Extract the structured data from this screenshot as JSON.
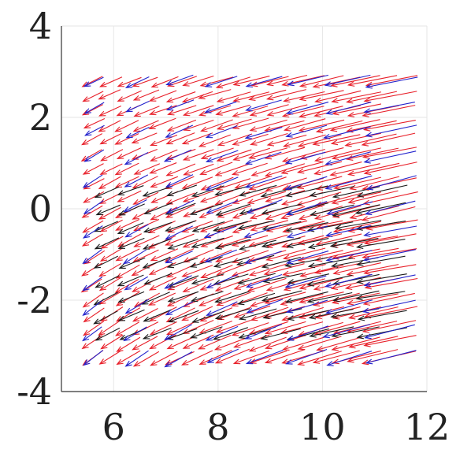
{
  "chart_data": {
    "type": "quiver",
    "title": "",
    "xlabel": "",
    "ylabel": "",
    "xlim": [
      5,
      12
    ],
    "ylim": [
      -4,
      4
    ],
    "xticks": [
      "6",
      "8",
      "10",
      "12"
    ],
    "yticks": [
      "4",
      "2",
      "0",
      "-2",
      "-4"
    ],
    "grid": true,
    "box": "left-bottom",
    "series": [
      {
        "color": "#e8202a",
        "field": {
          "x_range": [
            5.8,
            11.8
          ],
          "y_range": [
            -3.1,
            2.9
          ],
          "columns": 18,
          "rows": 20,
          "u_base": -0.38,
          "u_gain": -0.05,
          "v_base": -0.3,
          "v_gain": 0.03
        }
      },
      {
        "color": "#1a1a1a",
        "field": {
          "x_range": [
            6.1,
            11.6
          ],
          "y_range": [
            -2.6,
            0.5
          ],
          "columns": 12,
          "rows": 9,
          "u_base": -0.42,
          "u_gain": -0.04,
          "v_base": -0.26,
          "v_gain": 0.03
        }
      },
      {
        "color": "#2222cc",
        "field": {
          "x_range": [
            5.8,
            11.8
          ],
          "y_range": [
            -3.1,
            2.9
          ],
          "columns": 8,
          "rows": 12,
          "u_base": -0.36,
          "u_gain": -0.05,
          "v_base": -0.32,
          "v_gain": 0.03
        }
      }
    ]
  }
}
